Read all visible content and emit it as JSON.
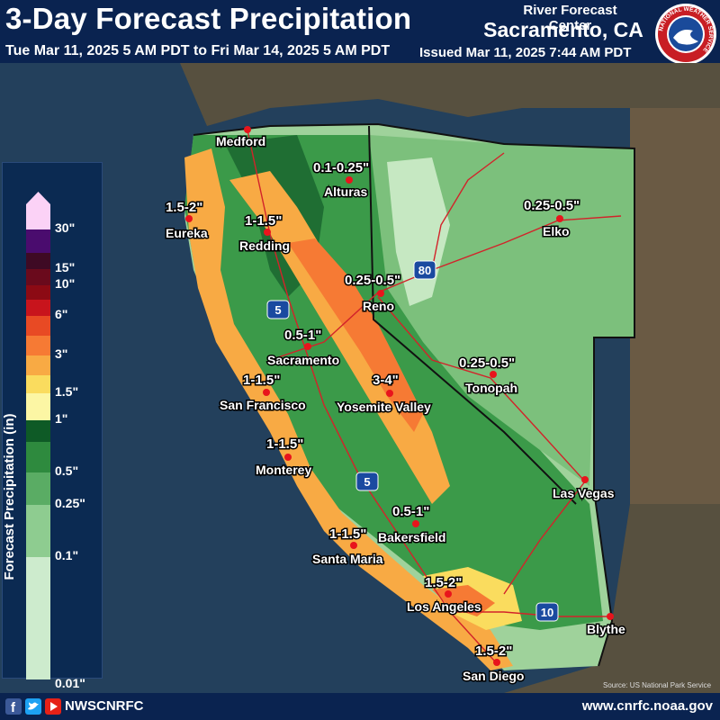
{
  "header": {
    "title": "3-Day Forecast Precipitation",
    "period": "Tue Mar 11, 2025 5 AM PDT to Fri Mar 14, 2025 5 AM PDT",
    "issued": "Issued Mar 11, 2025 7:44 AM PDT",
    "center_line1": "River Forecast Center",
    "center_line2": "Sacramento, CA",
    "logo_text": "NATIONAL WEATHER SERVICE"
  },
  "legend": {
    "title": "Forecast Precipitation (in)",
    "bins": [
      {
        "label": "30\"",
        "color": "#fbd2f6"
      },
      {
        "label": "",
        "color": "#4a0c6e"
      },
      {
        "label": "15\"",
        "color": "#3e0a24"
      },
      {
        "label": "10\"",
        "color": "#6a0a1c"
      },
      {
        "label": "",
        "color": "#8c0a14"
      },
      {
        "label": "6\"",
        "color": "#c8141c"
      },
      {
        "label": "",
        "color": "#e84a24"
      },
      {
        "label": "3\"",
        "color": "#f67a34"
      },
      {
        "label": "",
        "color": "#f8aa44"
      },
      {
        "label": "1.5\"",
        "color": "#fadc5e"
      },
      {
        "label": "1\"",
        "color": "#fcf6a4"
      },
      {
        "label": "",
        "color": "#0e5a26"
      },
      {
        "label": "0.5\"",
        "color": "#2e8a3e"
      },
      {
        "label": "0.25\"",
        "color": "#5aac64"
      },
      {
        "label": "0.1\"",
        "color": "#8ecc90"
      },
      {
        "label": "0.01\"",
        "color": "#cdebcd"
      }
    ]
  },
  "cities": [
    {
      "name": "Medford"
    },
    {
      "name": "Alturas"
    },
    {
      "name": "Eureka"
    },
    {
      "name": "Redding"
    },
    {
      "name": "Elko"
    },
    {
      "name": "Reno"
    },
    {
      "name": "Sacramento"
    },
    {
      "name": "San Francisco"
    },
    {
      "name": "Yosemite Valley"
    },
    {
      "name": "Tonopah"
    },
    {
      "name": "Monterey"
    },
    {
      "name": "Las Vegas"
    },
    {
      "name": "Bakersfield"
    },
    {
      "name": "Santa Maria"
    },
    {
      "name": "Los Angeles"
    },
    {
      "name": "Blythe"
    },
    {
      "name": "San Diego"
    }
  ],
  "amounts": [
    "0.1-0.25\"",
    "1.5-2\"",
    "1-1.5\"",
    "0.25-0.5\"",
    "0.25-0.5\"",
    "0.5-1\"",
    "1-1.5\"",
    "3-4\"",
    "0.25-0.5\"",
    "1-1.5\"",
    "0.5-1\"",
    "1-1.5\"",
    "1.5-2\"",
    "1.5-2\""
  ],
  "highways": [
    "5",
    "80",
    "5",
    "10"
  ],
  "map_credit": "Source: US National Park Service",
  "footer": {
    "handle": "NWSCNRFC",
    "website": "www.cnrfc.noaa.gov"
  },
  "colors": {
    "header_bg": "#0a2350",
    "ocean": "#23405c",
    "land_outside": "#5a5040",
    "roads": "#d2232a",
    "city_dot": "#e8141c"
  }
}
